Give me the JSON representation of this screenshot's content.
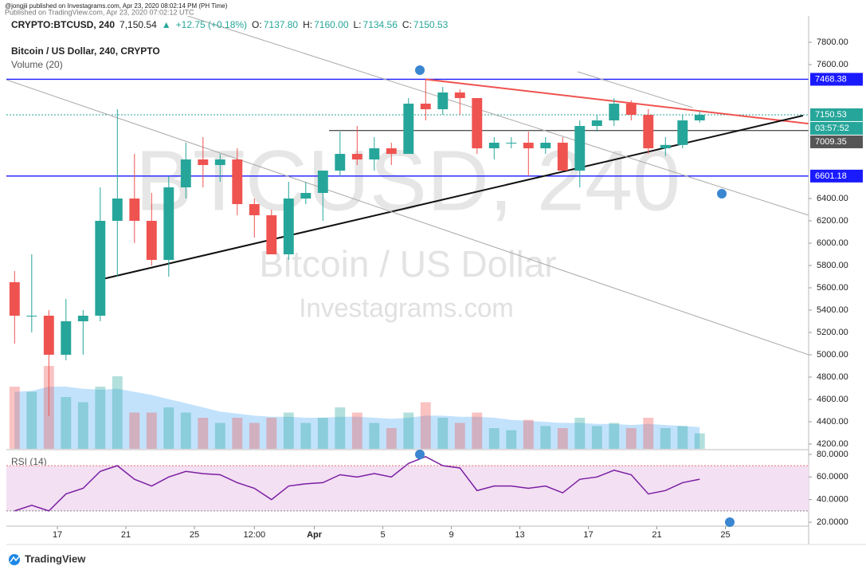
{
  "header": {
    "published": "@jongjii published on Investagrams.com, Apr 23, 2020 08:02:14 PM (PH Time)",
    "published_tv": "Published on TradingView.com, Apr 23, 2020 07:02:12 UTC",
    "symbol": "CRYPTO:BTCUSD, 240",
    "last": "7,150.54",
    "arrow": "▲",
    "change": "+12.75 (+0.18%)",
    "ohlc": [
      {
        "label": "O:",
        "value": "7137.80"
      },
      {
        "label": "H:",
        "value": "7160.00"
      },
      {
        "label": "L:",
        "value": "7134.56"
      },
      {
        "label": "C:",
        "value": "7150.53"
      }
    ]
  },
  "chart_data": {
    "type": "candlestick",
    "title": "Bitcoin / US Dollar, 240, CRYPTO",
    "watermark": [
      "BTCUSD, 240",
      "Bitcoin / US Dollar",
      "Investagrams.com"
    ],
    "x": [
      14,
      15,
      16,
      17,
      18,
      19,
      20,
      21,
      22,
      23,
      24,
      25,
      26,
      27,
      28,
      29,
      30,
      31,
      32,
      33,
      34,
      35,
      36,
      37,
      38,
      39,
      40,
      41,
      42,
      43,
      44,
      45,
      46,
      47,
      48,
      49,
      50,
      51,
      52,
      53,
      54
    ],
    "open": [
      5650,
      5350,
      5350,
      5000,
      5300,
      5350,
      6200,
      6400,
      6200,
      5850,
      6500,
      6750,
      6700,
      6750,
      6350,
      6250,
      5900,
      6400,
      6450,
      6650,
      6800,
      6750,
      6850,
      6800,
      7250,
      7200,
      7350,
      7300,
      6850,
      6900,
      6900,
      6850,
      6900,
      6650,
      7050,
      7100,
      7250,
      7150,
      6850,
      6880,
      7100
    ],
    "high": [
      5750,
      5900,
      5400,
      5500,
      5400,
      6500,
      7200,
      6800,
      6450,
      6600,
      6900,
      6950,
      6800,
      6850,
      6400,
      6300,
      6550,
      6550,
      6650,
      7000,
      7050,
      6950,
      6900,
      7300,
      7468,
      7400,
      7380,
      7300,
      6950,
      6950,
      7000,
      6950,
      6950,
      7100,
      7150,
      7300,
      7280,
      7200,
      6950,
      7150,
      7180
    ],
    "low": [
      5100,
      5200,
      4450,
      4950,
      5000,
      5300,
      5700,
      6000,
      5800,
      5700,
      6400,
      6500,
      6550,
      6250,
      6050,
      5900,
      5850,
      6350,
      6200,
      6600,
      6700,
      6650,
      6700,
      6800,
      7100,
      7150,
      7150,
      6800,
      6750,
      6850,
      6600,
      6800,
      6650,
      6500,
      7000,
      7050,
      7100,
      6800,
      6780,
      6850,
      7080
    ],
    "close": [
      5350,
      5350,
      5000,
      5300,
      5350,
      6200,
      6400,
      6200,
      5850,
      6500,
      6750,
      6700,
      6750,
      6350,
      6250,
      5900,
      6400,
      6450,
      6650,
      6800,
      6750,
      6850,
      6800,
      7250,
      7200,
      7350,
      7300,
      6850,
      6900,
      6900,
      6850,
      6900,
      6650,
      7050,
      7100,
      7250,
      7150,
      6850,
      6880,
      7100,
      7150
    ],
    "volume_label": "Volume (20)",
    "volume": [
      60,
      55,
      80,
      50,
      45,
      60,
      70,
      35,
      35,
      40,
      35,
      30,
      25,
      30,
      25,
      30,
      35,
      25,
      30,
      40,
      35,
      25,
      20,
      35,
      45,
      30,
      25,
      35,
      20,
      18,
      28,
      22,
      20,
      30,
      22,
      25,
      20,
      30,
      20,
      22,
      15
    ],
    "volume_ma": [
      55,
      56,
      60,
      60,
      58,
      57,
      58,
      55,
      52,
      48,
      44,
      40,
      36,
      34,
      32,
      31,
      31,
      30,
      30,
      31,
      31,
      30,
      29,
      30,
      32,
      32,
      31,
      31,
      30,
      28,
      27,
      26,
      25,
      25,
      24,
      24,
      23,
      24,
      23,
      22,
      21
    ],
    "vlim": [
      0,
      100
    ],
    "up_color": "#26a69a",
    "down_color": "#ef5350",
    "xlim": [
      14.02,
      60.86
    ],
    "xticks": [
      {
        "value": 17,
        "label": "17"
      },
      {
        "value": 21,
        "label": "21"
      },
      {
        "value": 25,
        "label": "25"
      },
      {
        "value": 28.5,
        "label": "12:00"
      },
      {
        "value": 32,
        "label": "Apr"
      },
      {
        "value": 36,
        "label": "5"
      },
      {
        "value": 40,
        "label": "9"
      },
      {
        "value": 44,
        "label": "13"
      },
      {
        "value": 48,
        "label": "17"
      },
      {
        "value": 52,
        "label": "21"
      },
      {
        "value": 56,
        "label": "25"
      }
    ],
    "ylim": [
      4157,
      8036
    ],
    "yticks": [
      {
        "value": 4200,
        "label": "4200.00"
      },
      {
        "value": 4400,
        "label": "4400.00"
      },
      {
        "value": 4600,
        "label": "4600.00"
      },
      {
        "value": 4800,
        "label": "4800.00"
      },
      {
        "value": 5000,
        "label": "5000.00"
      },
      {
        "value": 5200,
        "label": "5200.00"
      },
      {
        "value": 5400,
        "label": "5400.00"
      },
      {
        "value": 5600,
        "label": "5600.00"
      },
      {
        "value": 5800,
        "label": "5800.00"
      },
      {
        "value": 6000,
        "label": "6000.00"
      },
      {
        "value": 6200,
        "label": "6200.00"
      },
      {
        "value": 6400,
        "label": "6400.00"
      },
      {
        "value": 7600,
        "label": "7600.00"
      },
      {
        "value": 7800,
        "label": "7800.00"
      }
    ],
    "price_lines": [
      {
        "value": 7468.38,
        "color": "#1a1aff",
        "start": 14.02
      },
      {
        "value": 7150.53,
        "color": "#26a69a",
        "start": 14.02,
        "countdown": "03:57:52"
      },
      {
        "value": 7009.35,
        "color": "#555555",
        "start": 32.86
      },
      {
        "value": 6601.18,
        "color": "#1a1aff",
        "start": 14.02
      }
    ],
    "trendlines": [
      {
        "color": "#ef5350",
        "points": [
          [
            38.49,
            7468
          ],
          [
            60.86,
            7071
          ]
        ]
      },
      {
        "color": "#111111",
        "points": [
          [
            19.23,
            5664
          ],
          [
            60.53,
            7143
          ]
        ]
      },
      {
        "color": "#aaaaaa",
        "points": [
          [
            24.6,
            8036
          ],
          [
            60.86,
            6250
          ]
        ]
      },
      {
        "color": "#aaaaaa",
        "points": [
          [
            14.02,
            7464
          ],
          [
            60.86,
            5000
          ]
        ]
      },
      {
        "color": "#aaaaaa",
        "points": [
          [
            47.37,
            7536
          ],
          [
            54.1,
            7214
          ]
        ]
      }
    ],
    "rsi": {
      "label": "RSI (14)",
      "color": "#7b1fa2",
      "values": [
        30,
        35,
        30,
        45,
        50,
        65,
        70,
        58,
        52,
        60,
        65,
        63,
        62,
        55,
        50,
        40,
        52,
        54,
        55,
        62,
        60,
        63,
        60,
        72,
        78,
        70,
        68,
        48,
        52,
        52,
        50,
        52,
        46,
        58,
        60,
        66,
        62,
        45,
        48,
        55,
        58
      ],
      "ylim": [
        16.5,
        83.5
      ],
      "bands": [
        70,
        30
      ],
      "yticks": [
        {
          "value": 80,
          "label": "80.0000"
        },
        {
          "value": 60,
          "label": "60.0000"
        },
        {
          "value": 40,
          "label": "40.0000"
        },
        {
          "value": 20,
          "label": "20.0000"
        }
      ]
    }
  },
  "logo": "investagrams",
  "footer": "TradingView"
}
